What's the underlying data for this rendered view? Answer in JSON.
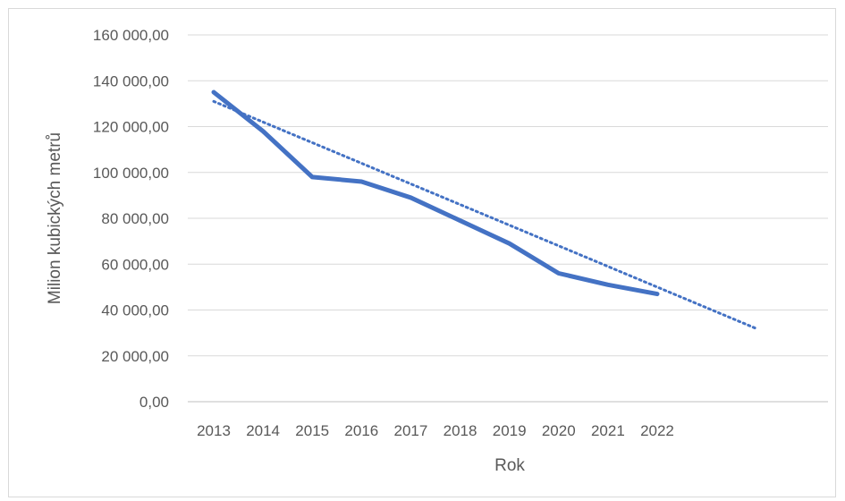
{
  "chart_data": {
    "type": "line",
    "title": "",
    "xlabel": "Rok",
    "ylabel": "Milion kubických metrů",
    "categories": [
      "2013",
      "2014",
      "2015",
      "2016",
      "2017",
      "2018",
      "2019",
      "2020",
      "2021",
      "2022"
    ],
    "y_tick_labels": [
      "0,00",
      "20 000,00",
      "40 000,00",
      "60 000,00",
      "80 000,00",
      "100 000,00",
      "120 000,00",
      "140 000,00",
      "160 000,00"
    ],
    "ylim": [
      0,
      160000
    ],
    "grid": true,
    "legend": "none",
    "series": [
      {
        "style": "solid",
        "color": "#4472c4",
        "values": [
          135000,
          118000,
          98000,
          96000,
          89000,
          79000,
          69000,
          56000,
          51000,
          47000
        ]
      },
      {
        "style": "dotted-trendline",
        "color": "#4472c4",
        "x_extent": 12,
        "values_at_ends": [
          131000,
          32000
        ]
      }
    ]
  }
}
